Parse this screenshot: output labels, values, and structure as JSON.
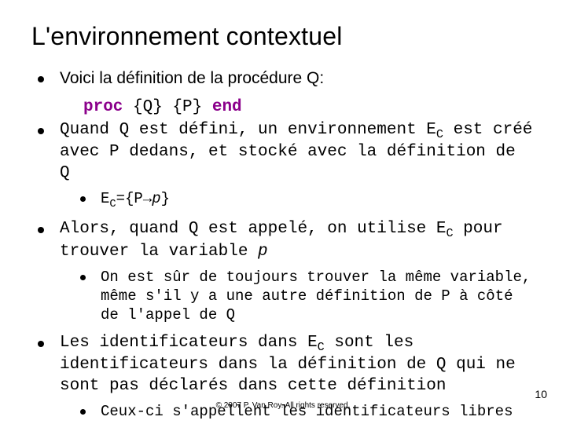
{
  "title": "L'environnement contextuel",
  "bullets": {
    "b1": "Voici la définition de la procédure Q:",
    "code": {
      "kw1": "proc",
      "mid": " {Q} {P} ",
      "kw2": "end"
    },
    "b2_pre": "Quand ",
    "b2_q": "Q",
    "b2_mid1": " est défini, un environnement ",
    "b2_ec_e": "E",
    "b2_ec_c": "C",
    "b2_mid2": " est créé avec ",
    "b2_p": "P",
    "b2_mid3": " dedans, et stocké avec la définition de ",
    "b2_q2": "Q",
    "b2s1_ec_e": "E",
    "b2s1_ec_c": "C",
    "b2s1_eq": "={P",
    "b2s1_arrow": "→",
    "b2s1_p": "p",
    "b2s1_close": "}",
    "b3_pre": "Alors, quand ",
    "b3_q": "Q",
    "b3_mid1": " est appelé, on utilise ",
    "b3_ec_e": "E",
    "b3_ec_c": "C",
    "b3_mid2": " pour trouver la variable ",
    "b3_p": "p",
    "b3s1_a": "On est sûr de toujours trouver la même variable, même s'il y a une autre définition de ",
    "b3s1_p": "P",
    "b3s1_b": " à côté de l'appel de ",
    "b3s1_q": "Q",
    "b4_a": "Les identificateurs dans ",
    "b4_ec_e": "E",
    "b4_ec_c": "C",
    "b4_b": " sont les identificateurs dans la définition de ",
    "b4_q": "Q",
    "b4_c": " qui ne sont pas déclarés dans cette définition",
    "b4s1": "Ceux-ci s'appellent les identificateurs libres"
  },
  "footer": "© 2007 P. Van Roy. All rights reserved.",
  "page": "10",
  "colors": {
    "keyword": "#8b008b",
    "text": "#000000",
    "background": "#ffffff"
  },
  "fonts": {
    "title_size": 32,
    "body_size": 21,
    "sub_size": 19,
    "footer_size": 10,
    "page_size": 14
  }
}
